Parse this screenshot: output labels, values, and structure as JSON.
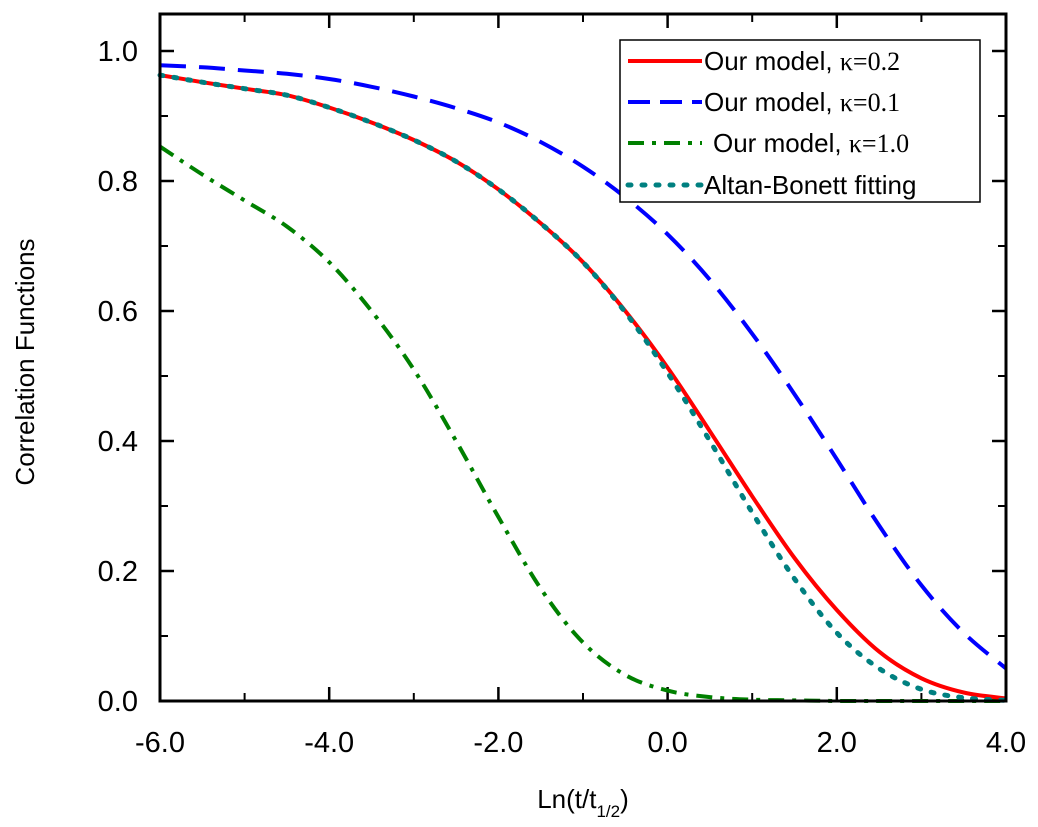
{
  "chart_data": {
    "type": "line",
    "xlabel": "Ln(t/t",
    "xlabel_sub": "1/2",
    "xlabel_close": ")",
    "ylabel": "Correlation Functions",
    "xlim": [
      -6.0,
      4.0
    ],
    "ylim": [
      0.0,
      1.05
    ],
    "xticks": [
      -6.0,
      -4.0,
      -2.0,
      0.0,
      2.0,
      4.0
    ],
    "xtick_labels": [
      "-6.0",
      "-4.0",
      "-2.0",
      "0.0",
      "2.0",
      "4.0"
    ],
    "yticks": [
      0.0,
      0.2,
      0.4,
      0.6,
      0.8,
      1.0
    ],
    "ytick_labels": [
      "0.0",
      "0.2",
      "0.4",
      "0.6",
      "0.8",
      "1.0"
    ],
    "grid": false,
    "legend_position": "top-right",
    "series": [
      {
        "name": "Our model, ",
        "kappa_label": "κ=0.2",
        "color": "#ff0000",
        "style": "solid",
        "x": [
          -6.0,
          -5.5,
          -5.0,
          -4.5,
          -4.0,
          -3.5,
          -3.0,
          -2.5,
          -2.0,
          -1.5,
          -1.0,
          -0.5,
          0.0,
          0.5,
          1.0,
          1.5,
          2.0,
          2.5,
          3.0,
          3.5,
          4.0
        ],
        "y": [
          0.963,
          0.952,
          0.942,
          0.932,
          0.913,
          0.89,
          0.863,
          0.83,
          0.787,
          0.735,
          0.675,
          0.6,
          0.513,
          0.415,
          0.315,
          0.22,
          0.14,
          0.076,
          0.035,
          0.013,
          0.004
        ]
      },
      {
        "name": "Our model, ",
        "kappa_label": "κ=0.1",
        "color": "#0000ff",
        "style": "dashed",
        "x": [
          -6.0,
          -5.5,
          -5.0,
          -4.5,
          -4.0,
          -3.5,
          -3.0,
          -2.5,
          -2.0,
          -1.5,
          -1.0,
          -0.5,
          0.0,
          0.5,
          1.0,
          1.5,
          2.0,
          2.5,
          3.0,
          3.5,
          4.0
        ],
        "y": [
          0.978,
          0.975,
          0.97,
          0.965,
          0.957,
          0.945,
          0.93,
          0.912,
          0.89,
          0.86,
          0.822,
          0.775,
          0.718,
          0.648,
          0.565,
          0.472,
          0.372,
          0.27,
          0.178,
          0.105,
          0.05
        ]
      },
      {
        "name": "Our model, ",
        "kappa_label": "κ=1.0",
        "color": "#008000",
        "style": "dashdot",
        "x": [
          -6.0,
          -5.5,
          -5.0,
          -4.5,
          -4.0,
          -3.5,
          -3.0,
          -2.5,
          -2.0,
          -1.5,
          -1.0,
          -0.5,
          0.0,
          0.5,
          1.0,
          1.5,
          2.0,
          2.5,
          3.0,
          3.5,
          4.0
        ],
        "y": [
          0.853,
          0.81,
          0.77,
          0.73,
          0.675,
          0.6,
          0.51,
          0.4,
          0.283,
          0.173,
          0.09,
          0.04,
          0.016,
          0.006,
          0.002,
          0.001,
          0.0,
          0.0,
          0.0,
          0.0,
          0.0
        ]
      },
      {
        "name": "Altan-Bonett fitting",
        "kappa_label": "",
        "color": "#008080",
        "style": "dotted",
        "x": [
          -6.0,
          -5.5,
          -5.0,
          -4.5,
          -4.0,
          -3.5,
          -3.0,
          -2.5,
          -2.0,
          -1.5,
          -1.0,
          -0.5,
          0.0,
          0.5,
          1.0,
          1.5,
          2.0,
          2.5,
          3.0,
          3.5,
          4.0
        ],
        "y": [
          0.963,
          0.952,
          0.942,
          0.932,
          0.913,
          0.89,
          0.863,
          0.83,
          0.787,
          0.735,
          0.675,
          0.598,
          0.505,
          0.4,
          0.29,
          0.188,
          0.105,
          0.05,
          0.018,
          0.005,
          0.001
        ]
      }
    ]
  }
}
